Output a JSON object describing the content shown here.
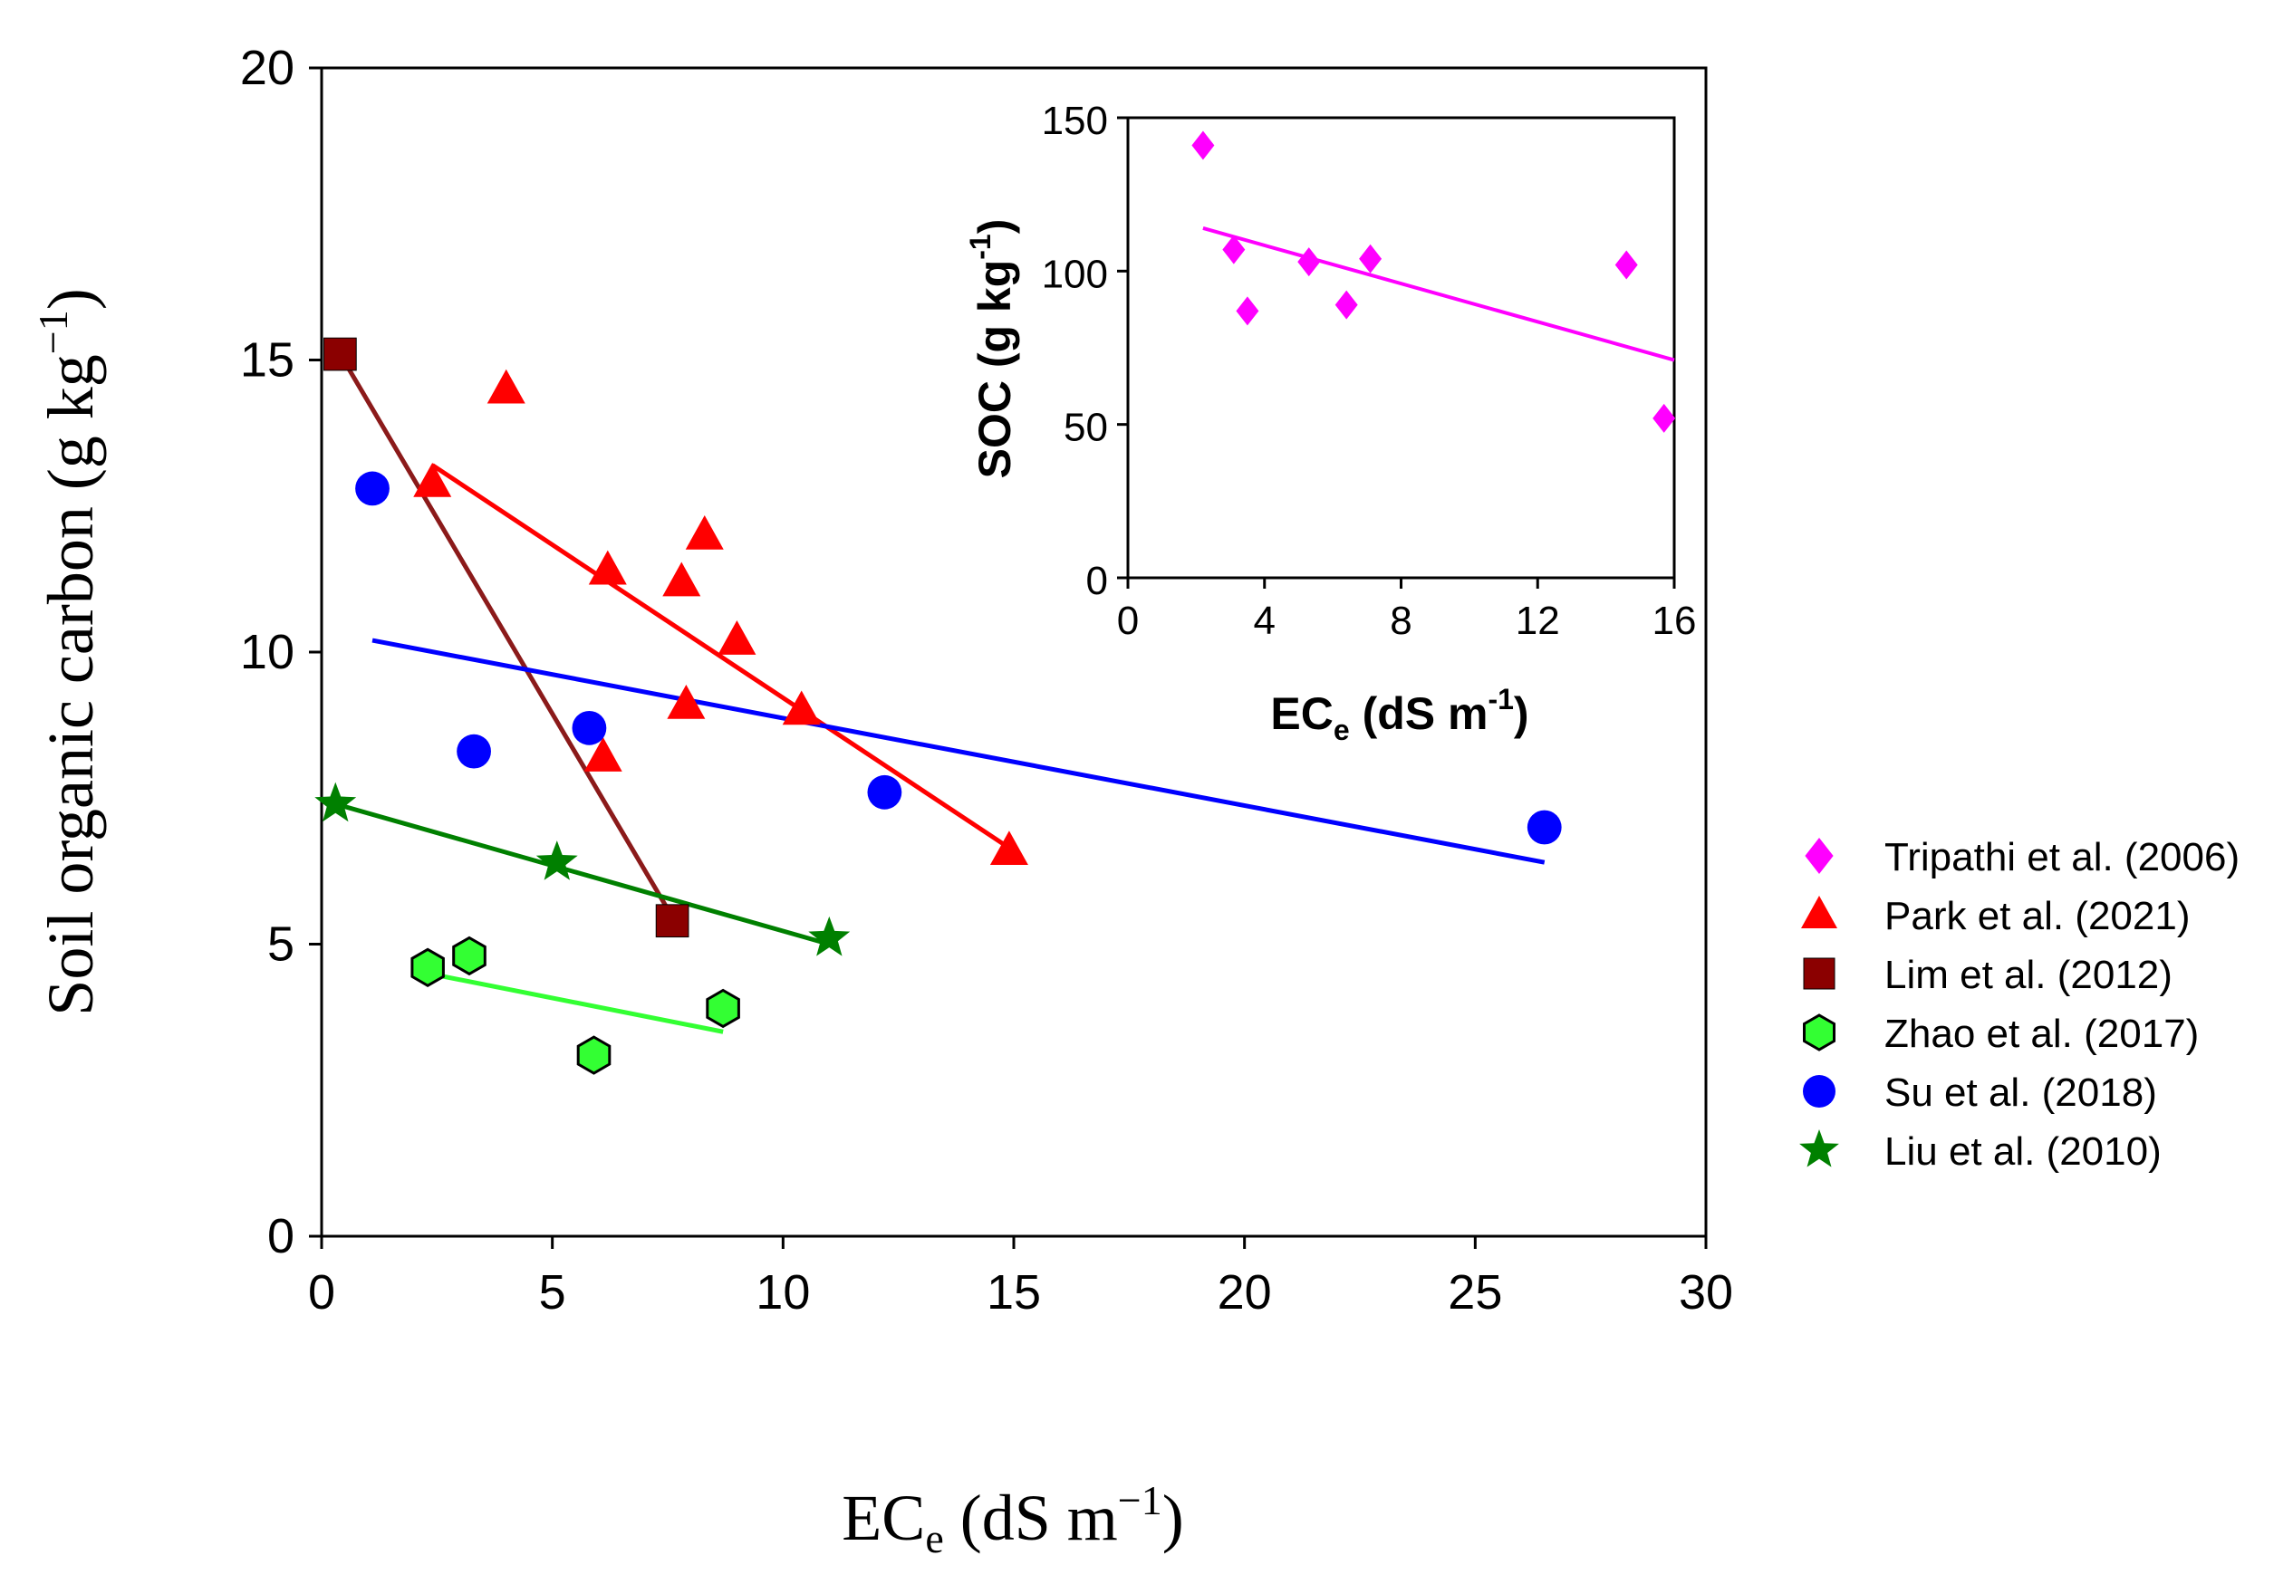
{
  "chart_data": {
    "type": "scatter",
    "xlabel": {
      "main": "EC",
      "sub": "e",
      "tail": " (dS m",
      "sup": "−1",
      "end": ")"
    },
    "ylabel": {
      "main": "Soil organic carbon (g kg",
      "sup": "−1",
      "end": ")"
    },
    "xlim": [
      0,
      30
    ],
    "ylim": [
      0,
      20
    ],
    "x_ticks": [
      "0",
      "5",
      "10",
      "15",
      "20",
      "25",
      "30"
    ],
    "y_ticks": [
      "0",
      "5",
      "10",
      "15",
      "20"
    ],
    "series": [
      {
        "name": "Park et al. (2021)",
        "marker": "triangle",
        "color": "#ff0000",
        "line_color": "#ff0000",
        "points": [
          [
            2.4,
            12.9
          ],
          [
            4.0,
            14.5
          ],
          [
            6.2,
            11.4
          ],
          [
            6.1,
            8.2
          ],
          [
            7.8,
            11.2
          ],
          [
            8.3,
            12.0
          ],
          [
            9.0,
            10.2
          ],
          [
            7.9,
            9.1
          ],
          [
            10.4,
            9.0
          ],
          [
            14.9,
            6.6
          ]
        ],
        "fit": [
          [
            2.4,
            13.2
          ],
          [
            14.8,
            6.7
          ]
        ]
      },
      {
        "name": "Lim et al. (2012)",
        "marker": "square",
        "color": "#8b0000",
        "line_color": "#8b1a1a",
        "points": [
          [
            0.4,
            15.1
          ],
          [
            7.6,
            5.4
          ]
        ],
        "fit": [
          [
            0.4,
            15.1
          ],
          [
            7.5,
            5.6
          ]
        ]
      },
      {
        "name": "Su et al. (2018)",
        "marker": "circle",
        "color": "#0000ff",
        "line_color": "#0000ff",
        "points": [
          [
            1.1,
            12.8
          ],
          [
            3.3,
            8.3
          ],
          [
            5.8,
            8.7
          ],
          [
            12.2,
            7.6
          ],
          [
            26.5,
            7.0
          ]
        ],
        "fit": [
          [
            1.1,
            10.2
          ],
          [
            26.5,
            6.4
          ]
        ]
      },
      {
        "name": "Liu et al. (2010)",
        "marker": "star",
        "color": "#008000",
        "line_color": "#008000",
        "points": [
          [
            0.3,
            7.4
          ],
          [
            5.1,
            6.4
          ],
          [
            11.0,
            5.1
          ]
        ],
        "fit": [
          [
            0.3,
            7.4
          ],
          [
            11.0,
            5.0
          ]
        ]
      },
      {
        "name": "Zhao et al. (2017)",
        "marker": "hexagon",
        "color": "#33ff33",
        "line_color": "#33ff33",
        "points": [
          [
            2.3,
            4.6
          ],
          [
            3.2,
            4.8
          ],
          [
            5.9,
            3.1
          ],
          [
            8.7,
            3.9
          ]
        ],
        "fit": [
          [
            2.3,
            4.5
          ],
          [
            8.7,
            3.5
          ]
        ]
      }
    ],
    "inset": {
      "xlabel": {
        "main": "EC",
        "sub": "e",
        "tail": " (dS m",
        "sup": "-1",
        "end": ")"
      },
      "ylabel": {
        "main": "SOC (g kg",
        "sup": "-1",
        "end": ")"
      },
      "xlim": [
        0,
        16
      ],
      "ylim": [
        0,
        150
      ],
      "x_ticks": [
        "0",
        "4",
        "8",
        "12",
        "16"
      ],
      "y_ticks": [
        "0",
        "50",
        "100",
        "150"
      ],
      "series": [
        {
          "name": "Tripathi et al. (2006)",
          "marker": "diamond",
          "color": "#ff00ff",
          "line_color": "#ff00ff",
          "points": [
            [
              2.2,
              141
            ],
            [
              3.1,
              107
            ],
            [
              3.5,
              87
            ],
            [
              5.3,
              103
            ],
            [
              6.4,
              89
            ],
            [
              7.1,
              104
            ],
            [
              14.6,
              102
            ],
            [
              15.7,
              52
            ]
          ],
          "fit": [
            [
              2.2,
              114
            ],
            [
              16.0,
              71
            ]
          ]
        }
      ]
    },
    "legend": [
      {
        "label": "Tripathi et al. (2006)",
        "marker": "diamond",
        "color": "#ff00ff"
      },
      {
        "label": "Park et al. (2021)",
        "marker": "triangle",
        "color": "#ff0000"
      },
      {
        "label": "Lim et al. (2012)",
        "marker": "square",
        "color": "#8b0000"
      },
      {
        "label": "Zhao et al. (2017)",
        "marker": "hexagon",
        "color": "#33ff33"
      },
      {
        "label": "Su et al. (2018)",
        "marker": "circle",
        "color": "#0000ff"
      },
      {
        "label": "Liu et al. (2010)",
        "marker": "star",
        "color": "#008000"
      }
    ],
    "legend_position": "right"
  }
}
